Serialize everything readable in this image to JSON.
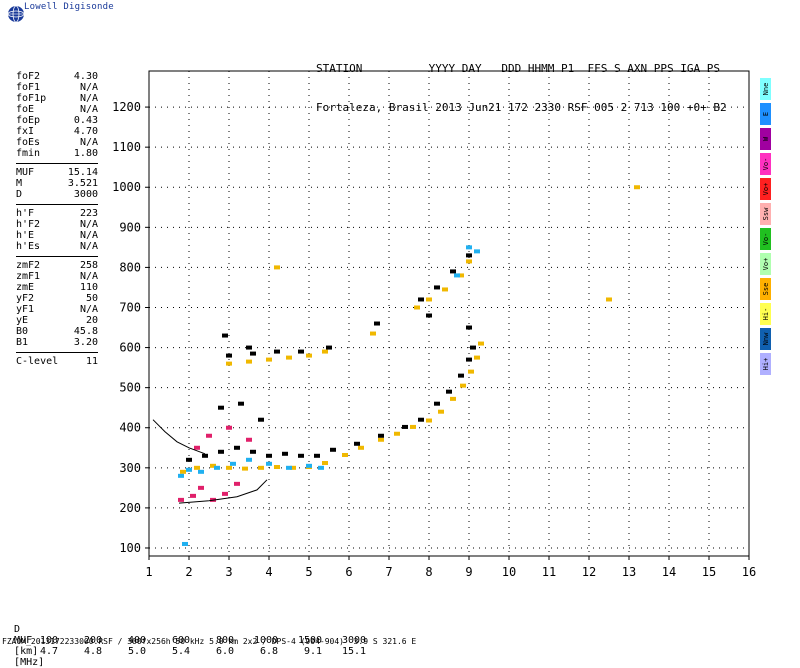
{
  "app": {
    "logo_text": "Lowell Digisonde"
  },
  "header": {
    "line1": "STATION          YYYY DAY   DDD HHMM P1  FFS S AXN PPS IGA PS",
    "line2": "Fortaleza, Brasil 2013 Jun21 172 2330 RSF 005 2 713 100 +0+ B2"
  },
  "params": [
    [
      {
        "k": "foF2",
        "v": "4.30"
      },
      {
        "k": "foF1",
        "v": "N/A"
      },
      {
        "k": "foF1p",
        "v": "N/A"
      },
      {
        "k": "foE",
        "v": "N/A"
      },
      {
        "k": "foEp",
        "v": "0.43"
      },
      {
        "k": "fxI",
        "v": "4.70"
      },
      {
        "k": "foEs",
        "v": "N/A"
      },
      {
        "k": "fmin",
        "v": "1.80"
      }
    ],
    [
      {
        "k": "MUF",
        "v": "15.14"
      },
      {
        "k": "M",
        "v": "3.521"
      },
      {
        "k": "D",
        "v": "3000"
      }
    ],
    [
      {
        "k": "h'F",
        "v": "223"
      },
      {
        "k": "h'F2",
        "v": "N/A"
      },
      {
        "k": "h'E",
        "v": "N/A"
      },
      {
        "k": "h'Es",
        "v": "N/A"
      }
    ],
    [
      {
        "k": "zmF2",
        "v": "258"
      },
      {
        "k": "zmF1",
        "v": "N/A"
      },
      {
        "k": "zmE",
        "v": "110"
      },
      {
        "k": "yF2",
        "v": "50"
      },
      {
        "k": "yF1",
        "v": "N/A"
      },
      {
        "k": "yE",
        "v": "20"
      },
      {
        "k": "B0",
        "v": "45.8"
      },
      {
        "k": "B1",
        "v": "3.20"
      }
    ],
    [
      {
        "k": "C-level",
        "v": "11"
      }
    ]
  ],
  "legend": [
    {
      "label": "Nne",
      "color": "#7fffff"
    },
    {
      "label": "E",
      "color": "#1e90ff"
    },
    {
      "label": "W",
      "color": "#a000a0"
    },
    {
      "label": "Vo-",
      "color": "#ff30c0"
    },
    {
      "label": "Vo+",
      "color": "#ff2020"
    },
    {
      "label": "Ssw",
      "color": "#ffb0b0"
    },
    {
      "label": "Vo-",
      "color": "#20c020"
    },
    {
      "label": "Vo+",
      "color": "#b0ffb0"
    },
    {
      "label": "Sse",
      "color": "#ffb000"
    },
    {
      "label": "Hi-",
      "color": "#ffff50"
    },
    {
      "label": "Nnw",
      "color": "#1060b0"
    },
    {
      "label": "Hi+",
      "color": "#b0b0ff"
    }
  ],
  "muf_table": {
    "d_label": "D",
    "muf_label": "MUF",
    "d_values": [
      "100",
      "200",
      "400",
      "600",
      "800",
      "1000",
      "1500",
      "3000"
    ],
    "muf_values": [
      "4.7",
      "4.8",
      "5.0",
      "5.4",
      "6.0",
      "6.8",
      "9.1",
      "15.1"
    ],
    "d_unit": "[km]",
    "muf_unit": "[MHz]"
  },
  "footer": "FZA0M_2013172233000.RSF / 300fx256h 50 kHz 5.0 km 2x2 / DPS-4 (904-904)  3.9 S 321.6 E",
  "chart_data": {
    "type": "scatter",
    "title": "",
    "xlabel": "",
    "ylabel": "",
    "xlim": [
      1,
      16
    ],
    "ylim": [
      80,
      1290
    ],
    "x_ticks": [
      1,
      2,
      3,
      4,
      5,
      6,
      7,
      8,
      9,
      10,
      11,
      12,
      13,
      14,
      15,
      16
    ],
    "y_ticks": [
      100,
      200,
      300,
      400,
      500,
      600,
      700,
      800,
      900,
      1000,
      1100,
      1200
    ],
    "grid": true,
    "series": [
      {
        "color": "#f0b800",
        "points": [
          [
            1.85,
            290
          ],
          [
            2.2,
            300
          ],
          [
            2.6,
            305
          ],
          [
            3.0,
            300
          ],
          [
            3.4,
            298
          ],
          [
            3.8,
            300
          ],
          [
            4.2,
            302
          ],
          [
            4.6,
            300
          ],
          [
            5.0,
            302
          ],
          [
            5.4,
            312
          ],
          [
            5.9,
            332
          ],
          [
            6.3,
            350
          ],
          [
            6.8,
            370
          ],
          [
            7.2,
            385
          ],
          [
            7.6,
            402
          ],
          [
            8.0,
            418
          ],
          [
            8.3,
            440
          ],
          [
            8.6,
            472
          ],
          [
            8.85,
            505
          ],
          [
            9.05,
            540
          ],
          [
            9.2,
            575
          ],
          [
            9.3,
            610
          ],
          [
            3.0,
            560
          ],
          [
            3.5,
            565
          ],
          [
            4.0,
            570
          ],
          [
            4.5,
            575
          ],
          [
            5.0,
            580
          ],
          [
            5.4,
            590
          ],
          [
            7.7,
            700
          ],
          [
            8.0,
            720
          ],
          [
            8.4,
            745
          ],
          [
            8.8,
            780
          ],
          [
            9.0,
            815
          ],
          [
            6.6,
            635
          ],
          [
            4.2,
            800
          ],
          [
            13.2,
            1000
          ],
          [
            12.5,
            720
          ]
        ]
      },
      {
        "color": "#000000",
        "points": [
          [
            2.0,
            320
          ],
          [
            2.4,
            330
          ],
          [
            2.8,
            340
          ],
          [
            3.2,
            350
          ],
          [
            3.6,
            340
          ],
          [
            4.0,
            330
          ],
          [
            4.4,
            335
          ],
          [
            4.8,
            330
          ],
          [
            5.2,
            330
          ],
          [
            5.6,
            345
          ],
          [
            6.2,
            360
          ],
          [
            6.8,
            380
          ],
          [
            7.4,
            402
          ],
          [
            7.8,
            420
          ],
          [
            8.2,
            460
          ],
          [
            8.5,
            490
          ],
          [
            8.8,
            530
          ],
          [
            9.0,
            570
          ],
          [
            9.1,
            600
          ],
          [
            9.0,
            650
          ],
          [
            3.0,
            580
          ],
          [
            3.6,
            585
          ],
          [
            4.2,
            590
          ],
          [
            4.8,
            590
          ],
          [
            5.5,
            600
          ],
          [
            7.8,
            720
          ],
          [
            8.2,
            750
          ],
          [
            8.6,
            790
          ],
          [
            9.0,
            830
          ],
          [
            8.0,
            680
          ],
          [
            6.7,
            660
          ],
          [
            2.8,
            450
          ],
          [
            3.3,
            460
          ],
          [
            3.8,
            420
          ],
          [
            2.9,
            630
          ],
          [
            3.5,
            600
          ]
        ]
      },
      {
        "color": "#20b0f0",
        "points": [
          [
            1.8,
            280
          ],
          [
            2.0,
            295
          ],
          [
            2.3,
            290
          ],
          [
            2.7,
            300
          ],
          [
            3.1,
            310
          ],
          [
            3.5,
            320
          ],
          [
            4.0,
            310
          ],
          [
            4.5,
            300
          ],
          [
            5.0,
            305
          ],
          [
            5.3,
            300
          ],
          [
            9.0,
            850
          ],
          [
            9.2,
            840
          ],
          [
            8.7,
            780
          ],
          [
            1.9,
            110
          ]
        ]
      },
      {
        "color": "#e0206a",
        "points": [
          [
            1.8,
            220
          ],
          [
            2.1,
            230
          ],
          [
            2.3,
            250
          ],
          [
            2.6,
            220
          ],
          [
            2.9,
            235
          ],
          [
            3.2,
            260
          ],
          [
            2.5,
            380
          ],
          [
            3.0,
            400
          ],
          [
            3.5,
            370
          ],
          [
            2.2,
            350
          ]
        ]
      }
    ],
    "model_curves": [
      {
        "x": [
          1.75,
          2.5,
          3.2,
          3.7,
          3.95
        ],
        "y": [
          212,
          218,
          228,
          245,
          270
        ]
      },
      {
        "x": [
          1.1,
          1.4,
          1.7,
          2.0,
          2.4
        ],
        "y": [
          420,
          390,
          365,
          350,
          335
        ]
      }
    ]
  }
}
